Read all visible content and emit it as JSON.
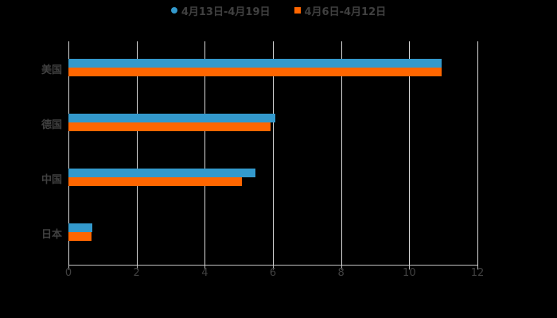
{
  "legend": [
    {
      "label": "4月13日-4月19日",
      "color": "#3399CC"
    },
    {
      "label": "4月6日-4月12日",
      "color": "#FF6600"
    }
  ],
  "chart_data": {
    "type": "bar",
    "orientation": "horizontal",
    "title": "",
    "categories": [
      "美国",
      "德国",
      "中国",
      "日本"
    ],
    "series": [
      {
        "name": "4月13日-4月19日",
        "color": "#3399CC",
        "values": [
          10.95,
          6.07,
          5.49,
          0.7
        ]
      },
      {
        "name": "4月6日-4月12日",
        "color": "#FF6600",
        "values": [
          10.95,
          5.93,
          5.09,
          0.68
        ]
      }
    ],
    "xlabel": "",
    "ylabel": "",
    "xlim": [
      0,
      12
    ],
    "xticks": [
      "0",
      "2",
      "4",
      "6",
      "8",
      "10",
      "12"
    ],
    "grid": true,
    "legend_position": "top"
  }
}
